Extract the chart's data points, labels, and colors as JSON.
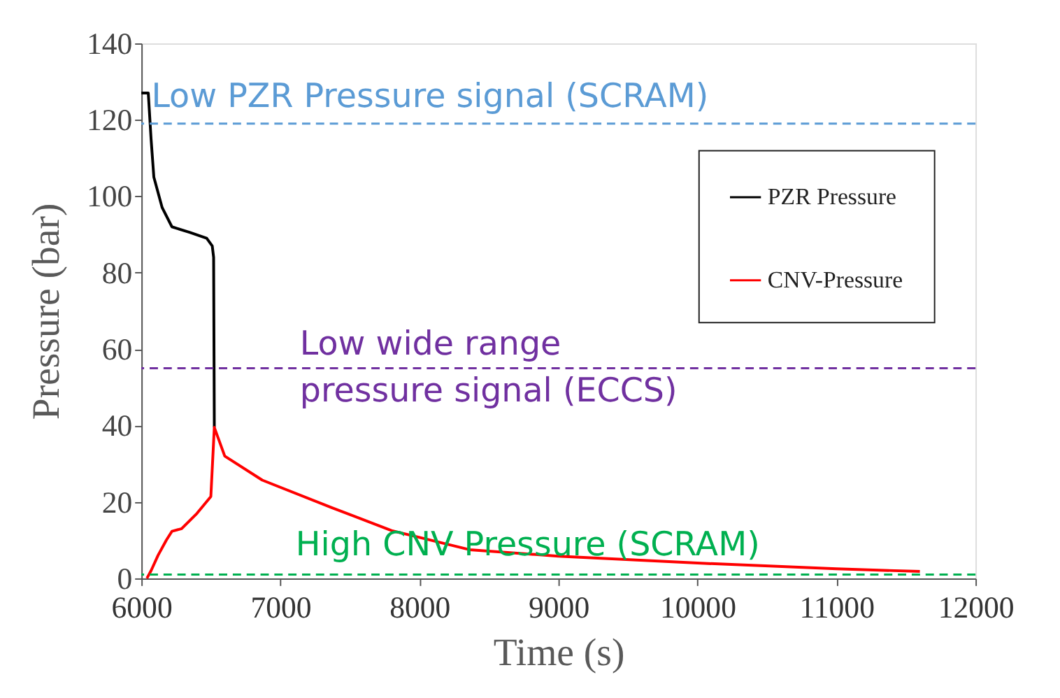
{
  "chart_data": {
    "type": "line",
    "xlabel": "Time (s)",
    "ylabel": "Pressure (bar)",
    "xlim": [
      6000,
      12000
    ],
    "xticks": [
      6000,
      7000,
      8000,
      9000,
      10000,
      11000,
      12000
    ],
    "ylim": [
      0,
      140
    ],
    "yticks": [
      0,
      20,
      40,
      60,
      80,
      100,
      120,
      140
    ],
    "grid": false,
    "legend": "top right",
    "line_style": "solid",
    "marker": "none",
    "series": [
      {
        "name": "PZR Pressure",
        "color": "#000000",
        "x": [
          6000,
          6050,
          6070,
          6090,
          6150,
          6220,
          6350,
          6470,
          6510,
          6520,
          6525
        ],
        "values": [
          127,
          127,
          115,
          105,
          97,
          92,
          90.5,
          89,
          87,
          84,
          39.5
        ]
      },
      {
        "name": "CNV-Pressure",
        "color": "#ff0000",
        "x": [
          6040,
          6070,
          6120,
          6180,
          6220,
          6290,
          6400,
          6500,
          6525,
          6600,
          6870,
          7370,
          7800,
          8360,
          9000,
          10000,
          11000,
          11600
        ],
        "values": [
          0,
          2,
          6,
          10,
          12.3,
          13,
          17,
          21.4,
          39.5,
          32,
          25.7,
          18.5,
          12.5,
          7.5,
          5.8,
          4,
          2.5,
          1.8
        ]
      }
    ],
    "ref_lines": [
      {
        "axis": "y",
        "value": 119,
        "label": "Low PZR Pressure signal (SCRAM)",
        "color": "#5b9bd5",
        "line_style": "dashed"
      },
      {
        "axis": "y",
        "value": 55,
        "label": "Low wide range\npressure signal (ECCS)",
        "color": "#7030a0",
        "line_style": "dashed"
      },
      {
        "axis": "y",
        "value": 1,
        "label": "High CNV Pressure (SCRAM)",
        "color": "#00b050",
        "line_style": "dashed"
      }
    ]
  }
}
